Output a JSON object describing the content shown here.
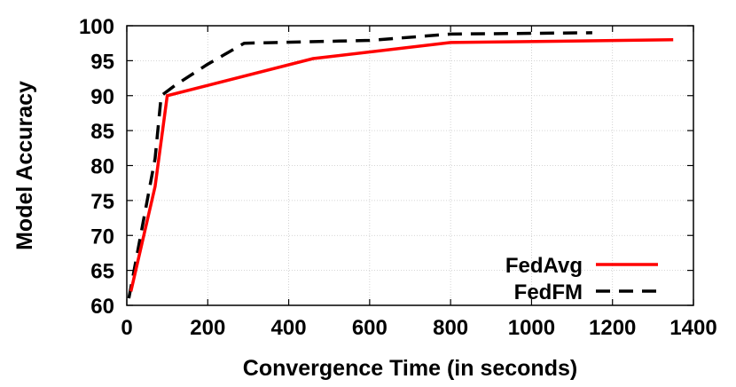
{
  "chart_data": {
    "type": "line",
    "title": "",
    "xlabel": "Convergence Time (in seconds)",
    "ylabel": "Model Accuracy",
    "xlim": [
      0,
      1400
    ],
    "ylim": [
      60,
      100
    ],
    "xticks": [
      0,
      200,
      400,
      600,
      800,
      1000,
      1200,
      1400
    ],
    "yticks": [
      60,
      65,
      70,
      75,
      80,
      85,
      90,
      95,
      100
    ],
    "xtick_labels": [
      "0",
      "200",
      "400",
      "600",
      "800",
      "1000",
      "1200",
      "1400"
    ],
    "ytick_labels": [
      "60",
      "65",
      "70",
      "75",
      "80",
      "85",
      "90",
      "95",
      "100"
    ],
    "grid": true,
    "legend_position": "bottom-right",
    "series": [
      {
        "name": "FedAvg",
        "color": "#ff0000",
        "style": "solid",
        "points": [
          [
            10,
            62
          ],
          [
            70,
            77
          ],
          [
            100,
            90
          ],
          [
            460,
            95.3
          ],
          [
            800,
            97.6
          ],
          [
            1350,
            98
          ]
        ]
      },
      {
        "name": "FedFM",
        "color": "#000000",
        "style": "dashed",
        "points": [
          [
            5,
            61
          ],
          [
            70,
            81
          ],
          [
            85,
            90
          ],
          [
            120,
            91.5
          ],
          [
            200,
            94.5
          ],
          [
            290,
            97.5
          ],
          [
            600,
            97.9
          ],
          [
            800,
            98.8
          ],
          [
            1150,
            99
          ]
        ]
      }
    ]
  }
}
